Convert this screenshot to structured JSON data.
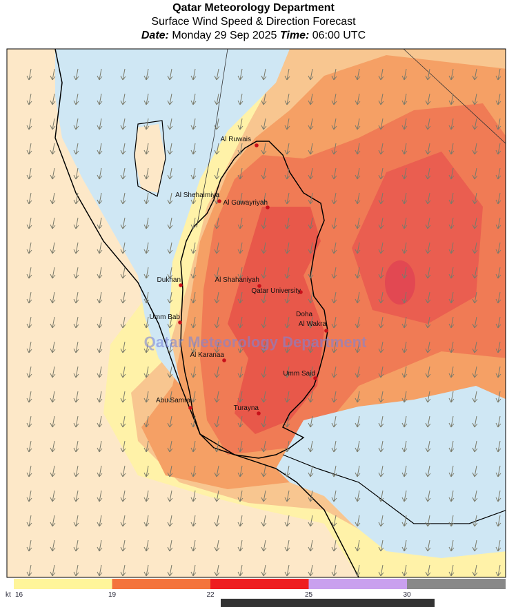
{
  "header": {
    "organization": "Qatar Meteorology Department",
    "title": "Surface Wind Speed & Direction Forecast",
    "date_label": "Date:",
    "date": "Monday 29 Sep 2025",
    "time_label": "Time:",
    "time": "06:00 UTC"
  },
  "map": {
    "watermark": "Qatar Meteorology Department",
    "places": [
      "Al Ruwais",
      "Al Shehaimiya",
      "Al Guwayriyah",
      "Dukhan",
      "Al Shahaniyah",
      "Qatar University",
      "Doha",
      "Al Wakra",
      "Umm Bab",
      "Al Karanaa",
      "Umm Said",
      "Abu Samra",
      "Turayna"
    ]
  },
  "legend": {
    "unit": "kt",
    "ticks": [
      16,
      19,
      22,
      25,
      30
    ],
    "colors": [
      "#fff59a",
      "#f4743c",
      "#ee1e20",
      "#c9a0ee",
      "#888888"
    ]
  }
}
